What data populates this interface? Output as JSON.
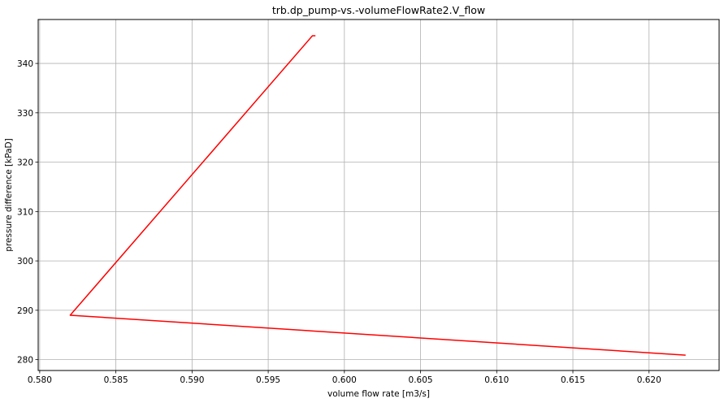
{
  "chart_data": {
    "type": "line",
    "title": "trb.dp_pump-vs.-volumeFlowRate2.V_flow",
    "xlabel": "volume flow rate [m3/s]",
    "ylabel": "pressure difference [kPaD]",
    "xlim": [
      0.5799,
      0.6246
    ],
    "ylim": [
      277.8,
      348.9
    ],
    "grid": true,
    "x_ticks": [
      0.58,
      0.585,
      0.59,
      0.595,
      0.6,
      0.605,
      0.61,
      0.615,
      0.62
    ],
    "x_tick_labels": [
      "0.580",
      "0.585",
      "0.590",
      "0.595",
      "0.600",
      "0.605",
      "0.610",
      "0.615",
      "0.620"
    ],
    "y_ticks": [
      280,
      290,
      300,
      310,
      320,
      330,
      340
    ],
    "y_tick_labels": [
      "280",
      "290",
      "300",
      "310",
      "320",
      "330",
      "340"
    ],
    "series": [
      {
        "color": "#ff0000",
        "x": [
          0.5981,
          0.5979,
          0.582,
          0.6224
        ],
        "y": [
          345.6,
          345.6,
          289.0,
          280.9
        ]
      }
    ]
  }
}
